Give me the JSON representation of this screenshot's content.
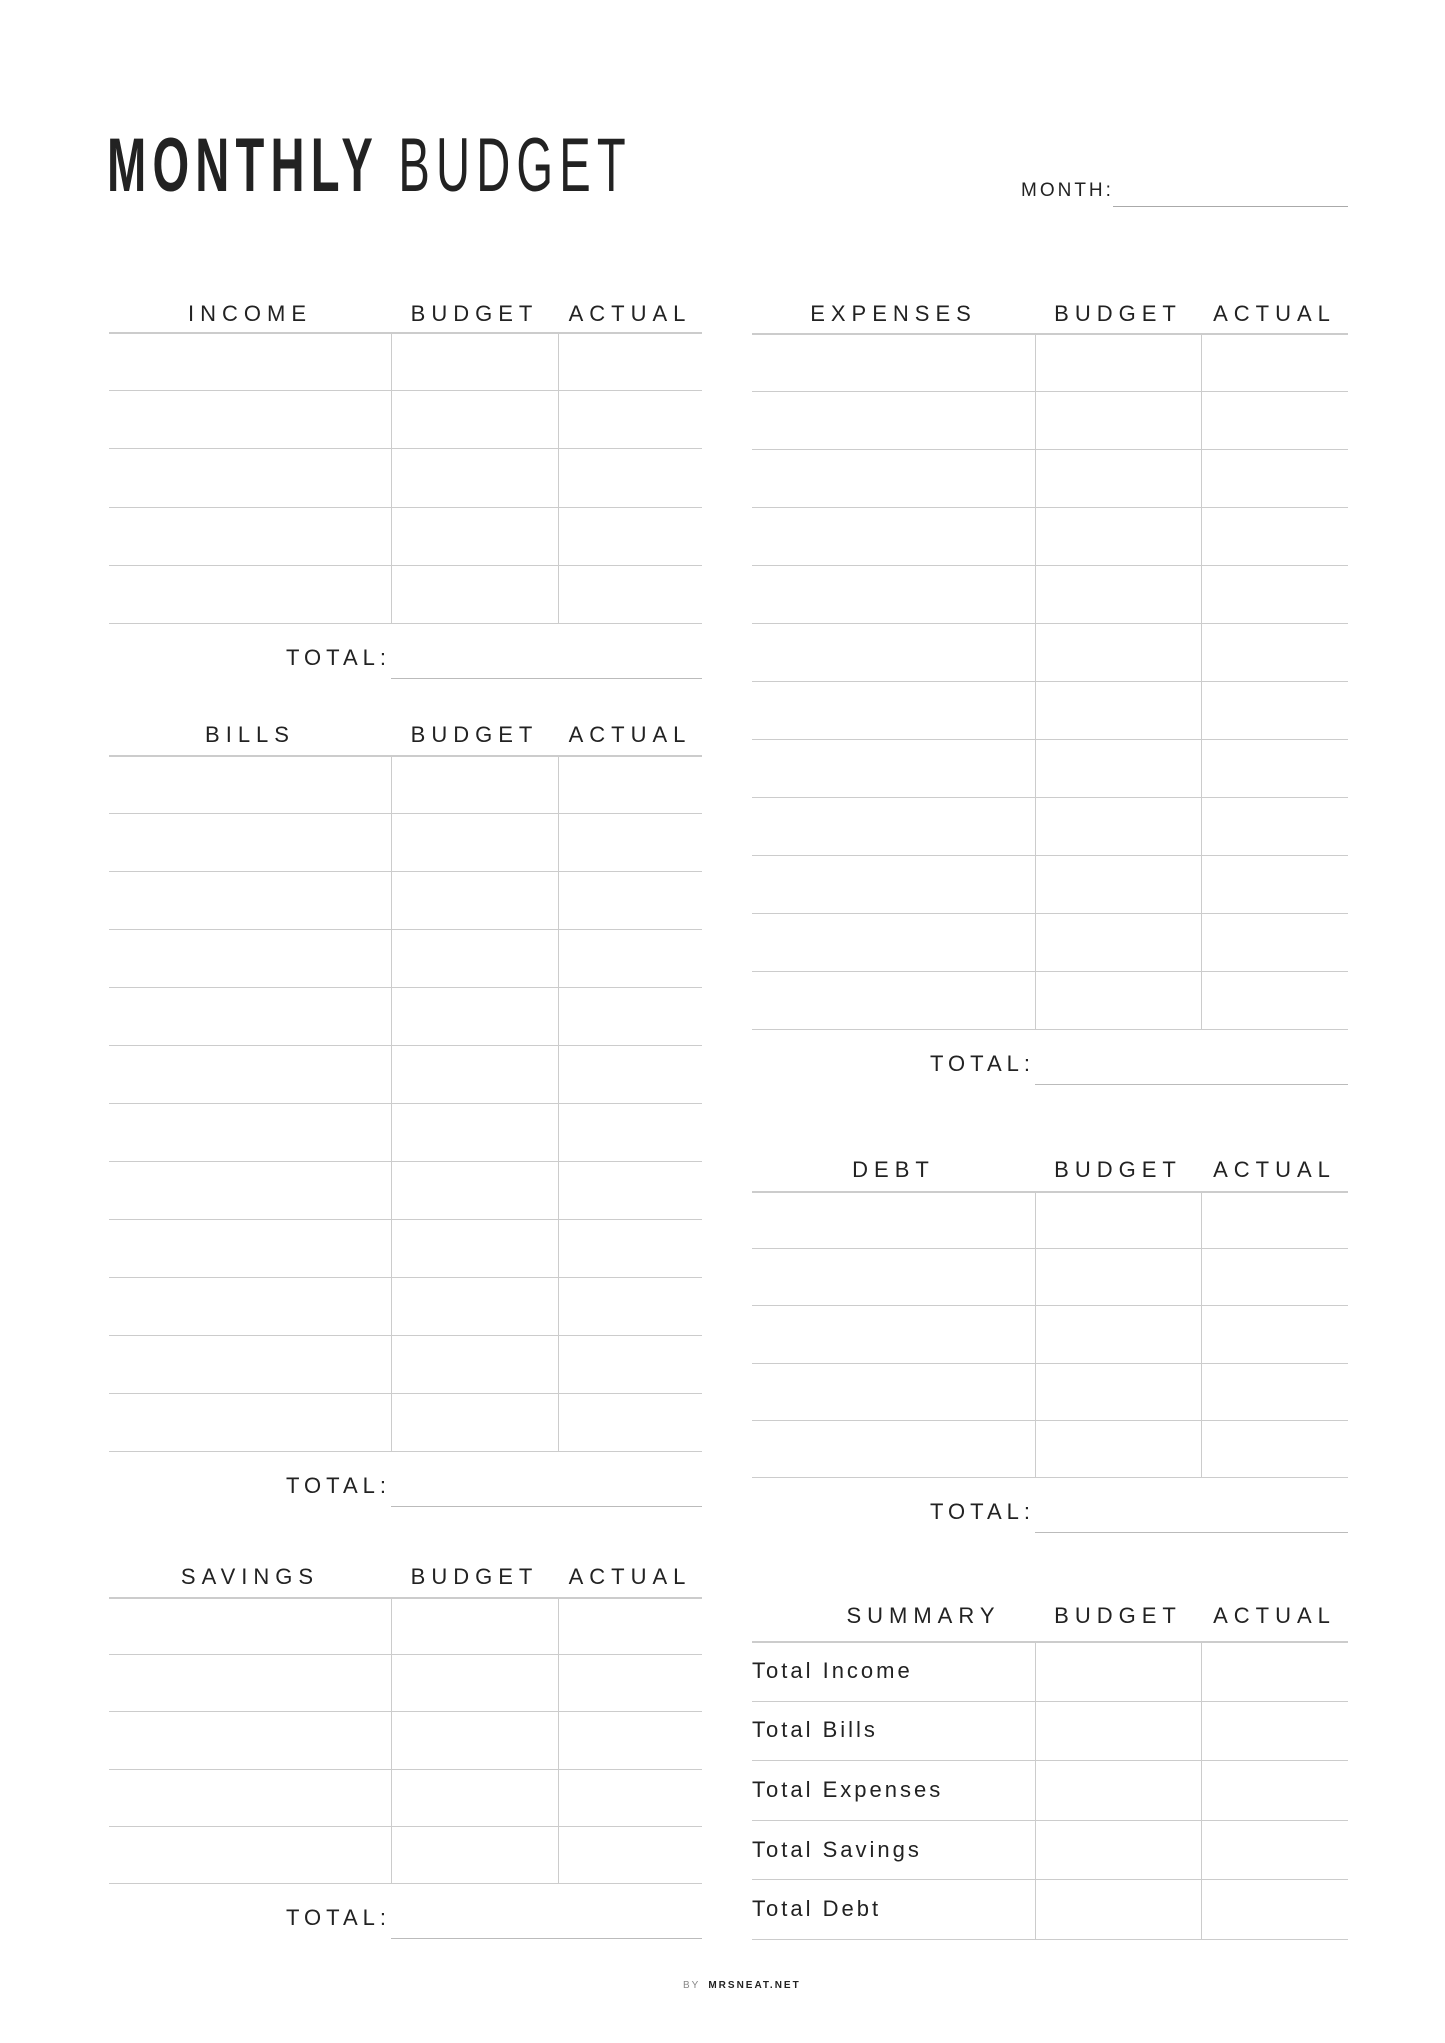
{
  "title": {
    "bold": "MONTHLY",
    "light": "BUDGET"
  },
  "month": {
    "label": "MONTH:",
    "value": ""
  },
  "total_label": "TOTAL:",
  "footer": {
    "by": "BY",
    "brand": "MRSNEAT.NET"
  },
  "sections": {
    "income": {
      "title": "INCOME",
      "budget": "BUDGET",
      "actual": "ACTUAL",
      "rows": [
        "",
        "",
        "",
        "",
        ""
      ]
    },
    "bills": {
      "title": "BILLS",
      "budget": "BUDGET",
      "actual": "ACTUAL",
      "rows": [
        "",
        "",
        "",
        "",
        "",
        "",
        "",
        "",
        "",
        "",
        "",
        ""
      ]
    },
    "savings": {
      "title": "SAVINGS",
      "budget": "BUDGET",
      "actual": "ACTUAL",
      "rows": [
        "",
        "",
        "",
        "",
        ""
      ]
    },
    "expenses": {
      "title": "EXPENSES",
      "budget": "BUDGET",
      "actual": "ACTUAL",
      "rows": [
        "",
        "",
        "",
        "",
        "",
        "",
        "",
        "",
        "",
        "",
        "",
        ""
      ]
    },
    "debt": {
      "title": "DEBT",
      "budget": "BUDGET",
      "actual": "ACTUAL",
      "rows": [
        "",
        "",
        "",
        "",
        ""
      ]
    },
    "summary": {
      "title": "SUMMARY",
      "budget": "BUDGET",
      "actual": "ACTUAL",
      "rows": [
        "Total Income",
        "Total Bills",
        "Total Expenses",
        "Total Savings",
        "Total Debt"
      ]
    }
  }
}
